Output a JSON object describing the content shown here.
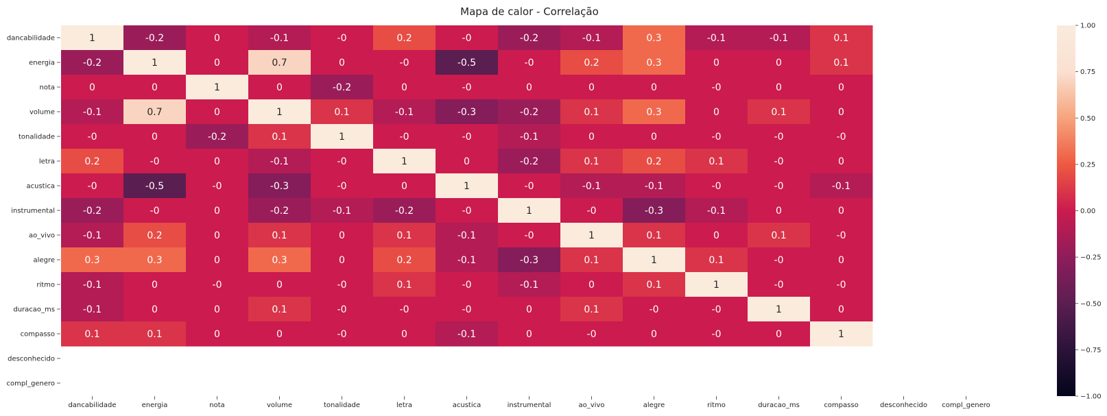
{
  "chart_data": {
    "type": "heatmap",
    "title": "Mapa de calor - Correlação",
    "rows": [
      "dancabilidade",
      "energia",
      "nota",
      "volume",
      "tonalidade",
      "letra",
      "acustica",
      "instrumental",
      "ao_vivo",
      "alegre",
      "ritmo",
      "duracao_ms",
      "compasso",
      "desconhecido",
      "compl_genero"
    ],
    "columns": [
      "dancabilidade",
      "energia",
      "nota",
      "volume",
      "tonalidade",
      "letra",
      "acustica",
      "instrumental",
      "ao_vivo",
      "alegre",
      "ritmo",
      "duracao_ms",
      "compasso",
      "desconhecido",
      "compl_genero"
    ],
    "values": [
      [
        1,
        -0.2,
        0,
        -0.1,
        -0.0,
        0.2,
        -0.0,
        -0.2,
        -0.1,
        0.3,
        -0.1,
        -0.1,
        0.1,
        null,
        null
      ],
      [
        -0.2,
        1,
        0,
        0.7,
        0,
        -0.0,
        -0.5,
        -0.0,
        0.2,
        0.3,
        0,
        0,
        0.1,
        null,
        null
      ],
      [
        0,
        0,
        1,
        0,
        -0.2,
        0,
        -0.0,
        0,
        0,
        0,
        -0.0,
        0,
        0,
        null,
        null
      ],
      [
        -0.1,
        0.7,
        0,
        1,
        0.1,
        -0.1,
        -0.3,
        -0.2,
        0.1,
        0.3,
        0,
        0.1,
        0,
        null,
        null
      ],
      [
        -0.0,
        0,
        -0.2,
        0.1,
        1,
        -0.0,
        -0.0,
        -0.1,
        0,
        0,
        -0.0,
        -0.0,
        -0.0,
        null,
        null
      ],
      [
        0.2,
        -0.0,
        0,
        -0.1,
        -0.0,
        1,
        0,
        -0.2,
        0.1,
        0.2,
        0.1,
        -0.0,
        0,
        null,
        null
      ],
      [
        -0.0,
        -0.5,
        -0.0,
        -0.3,
        -0.0,
        0,
        1,
        -0.0,
        -0.1,
        -0.1,
        -0.0,
        -0.0,
        -0.1,
        null,
        null
      ],
      [
        -0.2,
        -0.0,
        0,
        -0.2,
        -0.1,
        -0.2,
        -0.0,
        1,
        -0.0,
        -0.3,
        -0.1,
        0,
        0,
        null,
        null
      ],
      [
        -0.1,
        0.2,
        0,
        0.1,
        0,
        0.1,
        -0.1,
        -0.0,
        1,
        0.1,
        0,
        0.1,
        -0.0,
        null,
        null
      ],
      [
        0.3,
        0.3,
        0,
        0.3,
        0,
        0.2,
        -0.1,
        -0.3,
        0.1,
        1,
        0.1,
        -0.0,
        0,
        null,
        null
      ],
      [
        -0.1,
        0,
        -0.0,
        0,
        -0.0,
        0.1,
        -0.0,
        -0.1,
        0,
        0.1,
        1,
        -0.0,
        -0.0,
        null,
        null
      ],
      [
        -0.1,
        0,
        0,
        0.1,
        -0.0,
        -0.0,
        -0.0,
        0,
        0.1,
        -0.0,
        -0.0,
        1,
        0,
        null,
        null
      ],
      [
        0.1,
        0.1,
        0,
        0,
        -0.0,
        0,
        -0.1,
        0,
        -0.0,
        0,
        -0.0,
        0,
        1,
        null,
        null
      ],
      [
        null,
        null,
        null,
        null,
        null,
        null,
        null,
        null,
        null,
        null,
        null,
        null,
        null,
        null,
        null
      ],
      [
        null,
        null,
        null,
        null,
        null,
        null,
        null,
        null,
        null,
        null,
        null,
        null,
        null,
        null,
        null
      ]
    ],
    "colorbar": {
      "range": [
        -1,
        1
      ],
      "ticks": [
        1,
        0.75,
        0.5,
        0.25,
        0,
        -0.25,
        -0.5,
        -0.75,
        -1
      ],
      "tick_labels": [
        "1.00",
        "0.75",
        "0.50",
        "0.25",
        "0.00",
        "−0.25",
        "−0.50",
        "−0.75",
        "−1.00"
      ],
      "colormap": "rocket",
      "colors": [
        "#03051a",
        "#2b1339",
        "#5b1e51",
        "#8e1d5b",
        "#cb1b4f",
        "#ee5a41",
        "#f6a47c",
        "#fae0d1",
        "#faebdd"
      ]
    },
    "annotations": true,
    "grid": false
  }
}
